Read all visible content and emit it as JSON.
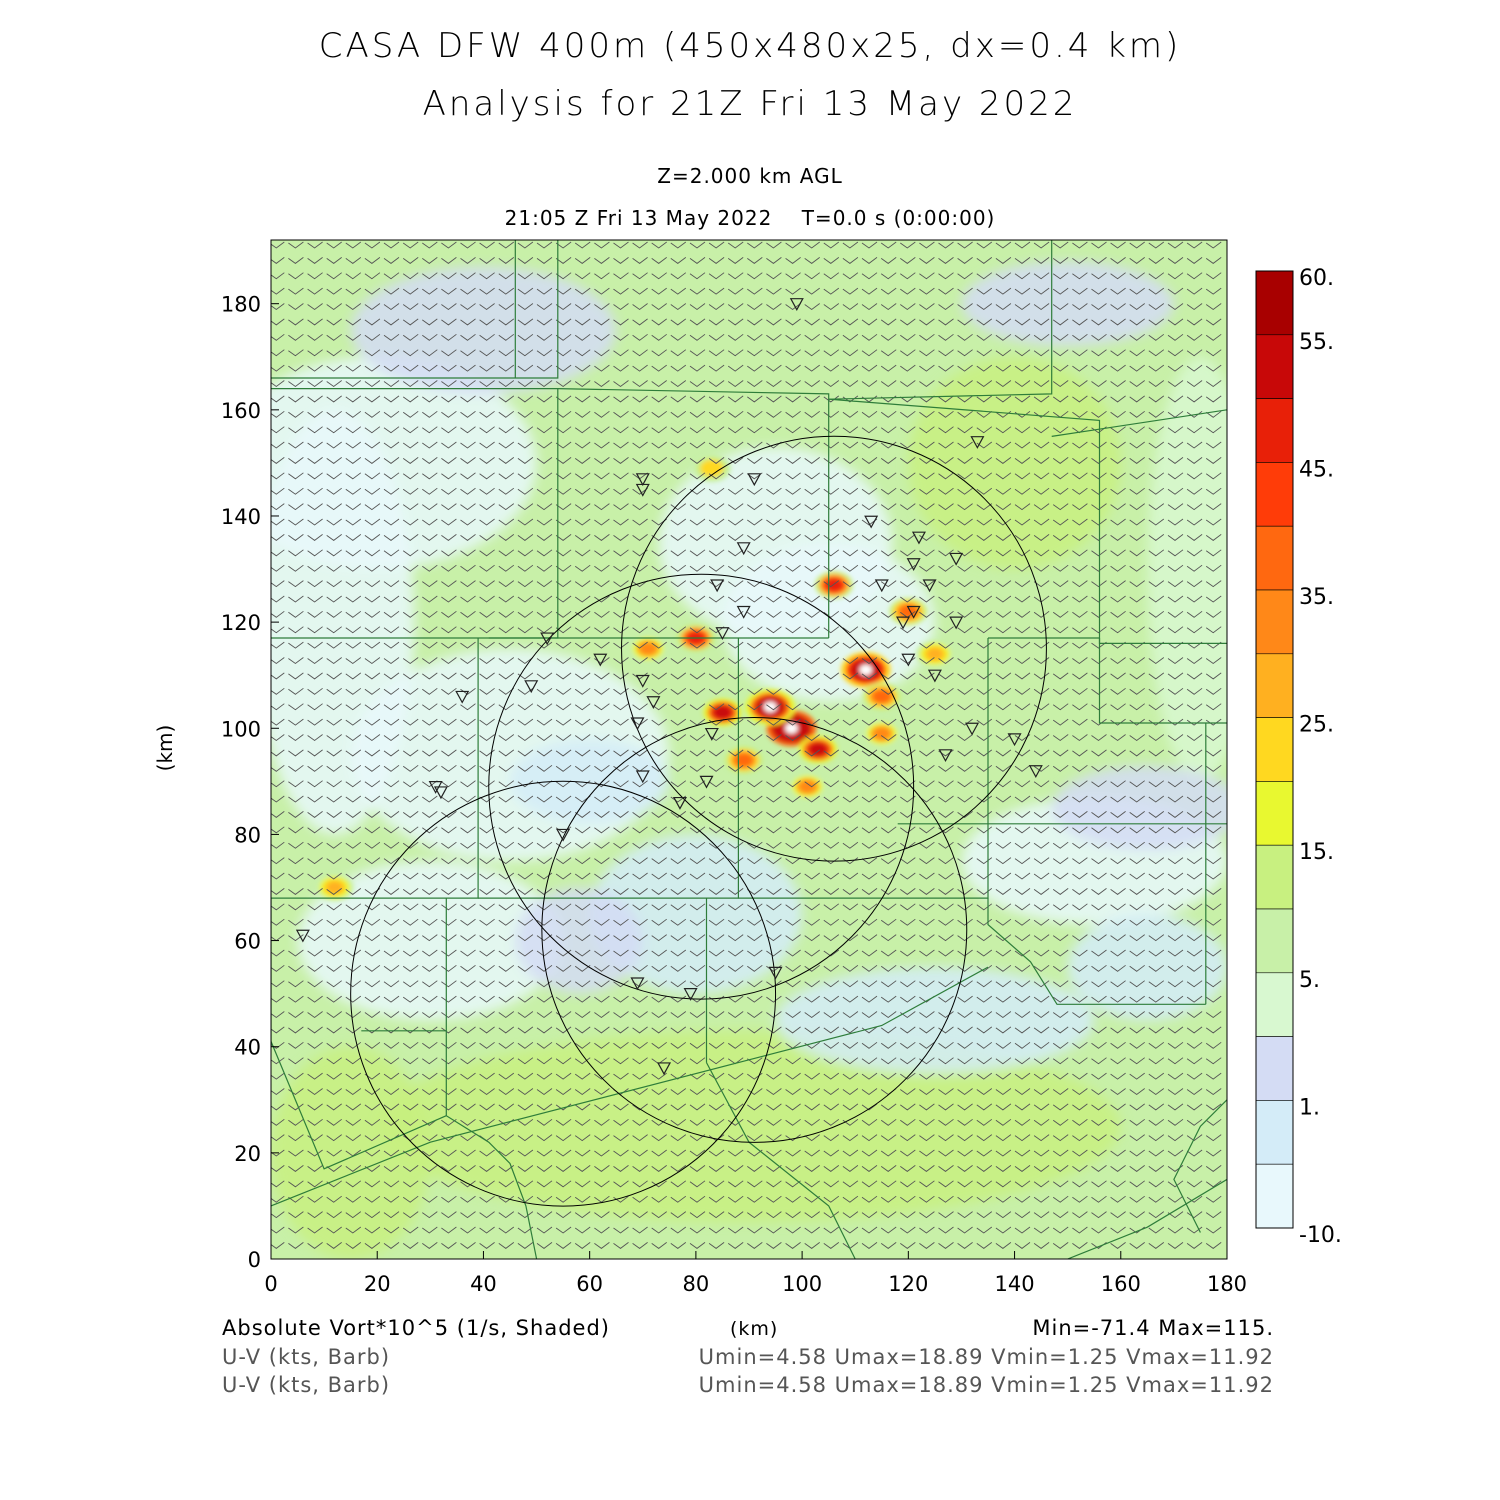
{
  "header": {
    "title_line1": "CASA DFW 400m (450x480x25, dx=0.4 km)",
    "title_line2": "Analysis for 21Z Fri 13 May 2022",
    "level": "Z=2.000 km AGL",
    "time": "21:05 Z Fri 13 May 2022    T=0.0 s (0:00:00)"
  },
  "colors": {
    "background": "#ffffff",
    "map_lines": "#2e7d3a",
    "radar_rings": "#000000",
    "colorbar": [
      "#e8f8fc",
      "#d4ecf8",
      "#d4dcf4",
      "#d8f8d0",
      "#c8f0a8",
      "#c8f080",
      "#e8f830",
      "#ffd820",
      "#ffb020",
      "#ff8818",
      "#ff6810",
      "#ff3c08",
      "#e82008",
      "#c80808",
      "#a80000"
    ]
  },
  "chart_data": {
    "type": "heatmap",
    "field": "Absolute Vort*10^5 (1/s, Shaded)",
    "xlabel": "(km)",
    "ylabel": "(km)",
    "xlim": [
      0,
      180
    ],
    "ylim": [
      0,
      192
    ],
    "x_ticks": [
      "0",
      "20",
      "40",
      "60",
      "80",
      "100",
      "120",
      "140",
      "160",
      "180"
    ],
    "y_ticks": [
      "0",
      "20",
      "40",
      "60",
      "80",
      "100",
      "120",
      "140",
      "160",
      "180"
    ],
    "colorbar_labels": [
      "60.",
      "55.",
      "45.",
      "35.",
      "25.",
      "15.",
      "5.",
      "1.",
      "-10."
    ],
    "wind_barbs": "U-V (kts, Barb)",
    "stats": {
      "vort": "Min=-71.4 Max=115.",
      "wind_1": "Umin=4.58 Umax=18.89 Vmin=1.25 Vmax=11.92",
      "wind_2": "Umin=4.58 Umax=18.89 Vmin=1.25 Vmax=11.92"
    },
    "radar_rings_km": [
      {
        "cx": 106,
        "cy": 115,
        "r": 40
      },
      {
        "cx": 81,
        "cy": 89,
        "r": 40
      },
      {
        "cx": 91,
        "cy": 62,
        "r": 40
      },
      {
        "cx": 55,
        "cy": 50,
        "r": 40
      }
    ],
    "hotspots_km": [
      {
        "x": 98,
        "y": 100,
        "v": 115
      },
      {
        "x": 94,
        "y": 104,
        "v": 70
      },
      {
        "x": 112,
        "y": 111,
        "v": 80
      },
      {
        "x": 85,
        "y": 103,
        "v": 60
      },
      {
        "x": 103,
        "y": 96,
        "v": 60
      },
      {
        "x": 106,
        "y": 127,
        "v": 55
      },
      {
        "x": 80,
        "y": 117,
        "v": 55
      },
      {
        "x": 120,
        "y": 122,
        "v": 45
      },
      {
        "x": 115,
        "y": 106,
        "v": 45
      },
      {
        "x": 71,
        "y": 115,
        "v": 40
      },
      {
        "x": 101,
        "y": 89,
        "v": 40
      },
      {
        "x": 83,
        "y": 149,
        "v": 30
      },
      {
        "x": 12,
        "y": 70,
        "v": 35
      },
      {
        "x": 125,
        "y": 114,
        "v": 35
      },
      {
        "x": 89,
        "y": 94,
        "v": 45
      },
      {
        "x": 115,
        "y": 99,
        "v": 40
      }
    ],
    "stations_km": [
      [
        99,
        180
      ],
      [
        133,
        154
      ],
      [
        70,
        147
      ],
      [
        70,
        145
      ],
      [
        91,
        147
      ],
      [
        113,
        139
      ],
      [
        89,
        134
      ],
      [
        122,
        136
      ],
      [
        129,
        132
      ],
      [
        121,
        131
      ],
      [
        115,
        127
      ],
      [
        124,
        127
      ],
      [
        84,
        127
      ],
      [
        89,
        122
      ],
      [
        121,
        122
      ],
      [
        129,
        120
      ],
      [
        119,
        120
      ],
      [
        85,
        118
      ],
      [
        52,
        117
      ],
      [
        62,
        113
      ],
      [
        120,
        113
      ],
      [
        125,
        110
      ],
      [
        70,
        109
      ],
      [
        49,
        108
      ],
      [
        36,
        106
      ],
      [
        72,
        105
      ],
      [
        69,
        101
      ],
      [
        83,
        99
      ],
      [
        132,
        100
      ],
      [
        127,
        95
      ],
      [
        140,
        98
      ],
      [
        144,
        92
      ],
      [
        70,
        91
      ],
      [
        31,
        89
      ],
      [
        32,
        88
      ],
      [
        77,
        86
      ],
      [
        82,
        90
      ],
      [
        55,
        80
      ],
      [
        6,
        61
      ],
      [
        69,
        52
      ],
      [
        79,
        50
      ],
      [
        95,
        54
      ],
      [
        74,
        36
      ]
    ]
  }
}
